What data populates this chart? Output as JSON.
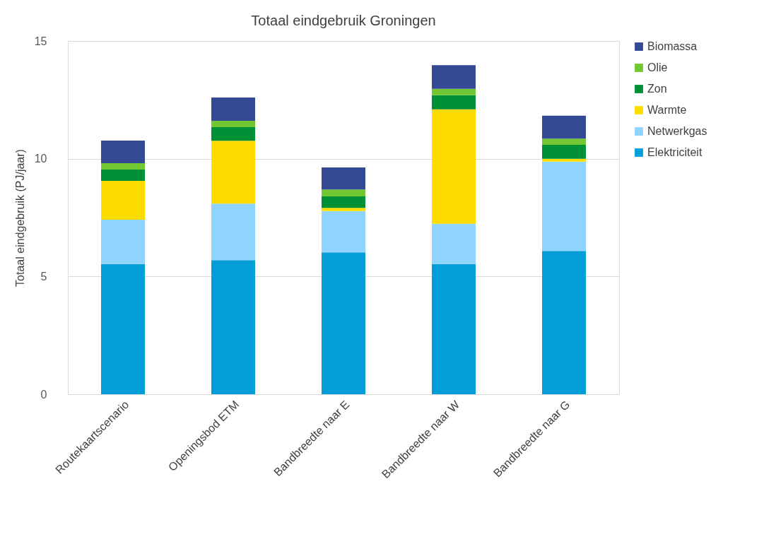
{
  "chart_data": {
    "type": "bar",
    "title": "Totaal eindgebruik Groningen",
    "ylabel": "Totaal eindgebruik (PJ/jaar)",
    "categories": [
      "Routekaartscenario",
      "Openingsbod ETM",
      "Bandbreedte naar E",
      "Bandbreedte naar W",
      "Bandbreedte naar G"
    ],
    "stacked": true,
    "ylim": [
      0,
      15
    ],
    "yticks": [
      0,
      5,
      10,
      15
    ],
    "grid": "y",
    "legend": "right",
    "series": [
      {
        "name": "Elektriciteit",
        "color": "#039dd8",
        "values": [
          5.53,
          5.69,
          6.02,
          5.53,
          6.08
        ]
      },
      {
        "name": "Netwerkgas",
        "color": "#8fd3ff",
        "values": [
          1.88,
          2.4,
          1.76,
          1.71,
          3.8
        ]
      },
      {
        "name": "Warmte",
        "color": "#ffdc00",
        "values": [
          1.65,
          2.67,
          0.13,
          4.86,
          0.12
        ]
      },
      {
        "name": "Zon",
        "color": "#009035",
        "values": [
          0.48,
          0.58,
          0.49,
          0.6,
          0.59
        ]
      },
      {
        "name": "Olie",
        "color": "#72c732",
        "values": [
          0.27,
          0.27,
          0.29,
          0.27,
          0.26
        ]
      },
      {
        "name": "Biomassa",
        "color": "#354a94",
        "values": [
          0.96,
          0.99,
          0.94,
          1.0,
          0.98
        ]
      }
    ]
  }
}
